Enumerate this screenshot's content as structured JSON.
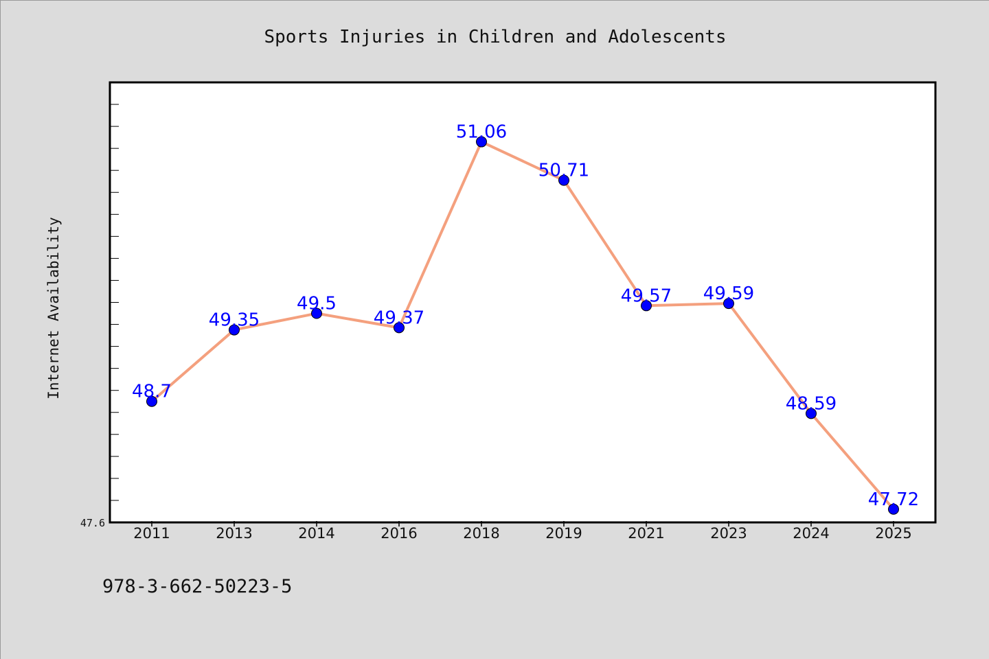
{
  "chart_data": {
    "type": "line",
    "title": "Sports Injuries in Children and Adolescents",
    "xlabel": "",
    "ylabel": "Internet Availability",
    "categories": [
      "2011",
      "2013",
      "2014",
      "2016",
      "2018",
      "2019",
      "2021",
      "2023",
      "2024",
      "2025"
    ],
    "series": [
      {
        "values": [
          48.7,
          49.35,
          49.5,
          49.37,
          51.06,
          50.71,
          49.57,
          49.59,
          48.59,
          47.72
        ],
        "data_labels": [
          "48.7",
          "49.35",
          "49.5",
          "49.37",
          "51.06",
          "50.71",
          "49.57",
          "49.59",
          "48.59",
          "47.72"
        ]
      }
    ],
    "ylim": [
      47.6,
      51.6
    ],
    "y_tick_label": "47.6",
    "y_minor_ticks_every": 0.2,
    "grid": false,
    "legend": "none",
    "colors": {
      "line": "#f4a07e",
      "marker": "#0000ff",
      "data_label": "#0000ff",
      "figure_background": "#dcdcdc",
      "plot_background": "#ffffff"
    }
  },
  "footer": {
    "isbn": "978-3-662-50223-5"
  }
}
